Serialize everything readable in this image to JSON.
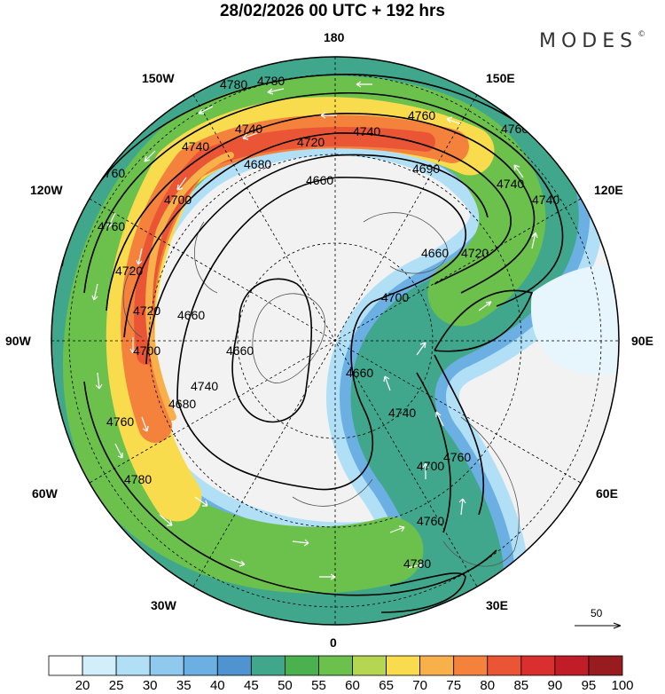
{
  "title": "28/02/2026  00 UTC  + 192 hrs",
  "brand": "MODES",
  "brand_mark": "©",
  "longitude_labels": {
    "n180": "180",
    "w150": "150W",
    "e150": "150E",
    "w120": "120W",
    "e120": "120E",
    "w90": "90W",
    "e90": "90E",
    "w60": "60W",
    "e60": "60E",
    "w30": "30W",
    "e30": "30E",
    "s0": "0"
  },
  "wind_scale_label": "50",
  "contour_labels": [
    "4780",
    "4760",
    "4740",
    "4740",
    "4720",
    "4740",
    "4760",
    "4760",
    "4680",
    "4660",
    "4690",
    "4740",
    "4760",
    "4720",
    "4700",
    "4760",
    "4720",
    "4740",
    "4740",
    "4660",
    "4660",
    "4700",
    "4720",
    "4680",
    "4700",
    "4660",
    "4660",
    "4700",
    "4740",
    "4760",
    "4780",
    "4780",
    "4760",
    "4780"
  ],
  "colorbar": {
    "ticks": [
      "20",
      "25",
      "30",
      "35",
      "40",
      "45",
      "50",
      "55",
      "60",
      "65",
      "70",
      "75",
      "80",
      "85",
      "90",
      "95",
      "100"
    ],
    "colors": [
      "#ffffff",
      "#d3eefb",
      "#b1e0f6",
      "#8fc9ee",
      "#6cb0e3",
      "#4f93d1",
      "#41a78c",
      "#4bb14f",
      "#6cc04c",
      "#b4d651",
      "#f9dc4e",
      "#f8b14a",
      "#f4823d",
      "#ea5536",
      "#d92f2e",
      "#c11d28",
      "#981b1f"
    ]
  },
  "colors": {
    "land": "#f2f2f2",
    "contour": "#000000",
    "wind_arrow": "#ffffff"
  }
}
